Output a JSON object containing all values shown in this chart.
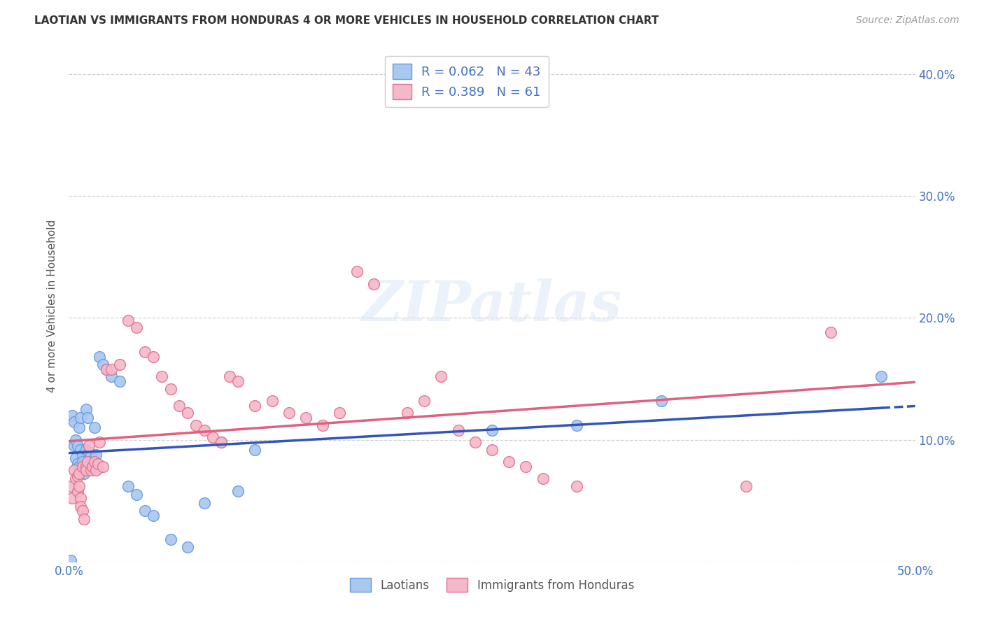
{
  "title": "LAOTIAN VS IMMIGRANTS FROM HONDURAS 4 OR MORE VEHICLES IN HOUSEHOLD CORRELATION CHART",
  "source": "Source: ZipAtlas.com",
  "ylabel": "4 or more Vehicles in Household",
  "xlim": [
    0.0,
    0.5
  ],
  "ylim": [
    0.0,
    0.42
  ],
  "xticks": [
    0.0,
    0.1,
    0.2,
    0.3,
    0.4,
    0.5
  ],
  "yticks": [
    0.0,
    0.1,
    0.2,
    0.3,
    0.4
  ],
  "xticklabels": [
    "0.0%",
    "",
    "",
    "",
    "",
    "50.0%"
  ],
  "yticklabels_right": [
    "",
    "10.0%",
    "20.0%",
    "30.0%",
    "40.0%"
  ],
  "grid_color": "#cccccc",
  "background_color": "#ffffff",
  "laotian_color": "#a8c8f0",
  "laotian_edge_color": "#6699dd",
  "honduras_color": "#f5b8c8",
  "honduras_edge_color": "#e07090",
  "laotian_R": 0.062,
  "laotian_N": 43,
  "honduras_R": 0.389,
  "honduras_N": 61,
  "axis_color": "#4472c4",
  "legend_label1": "Laotians",
  "legend_label2": "Immigrants from Honduras",
  "watermark_text": "ZIPatlas",
  "laotian_x": [
    0.001,
    0.002,
    0.003,
    0.003,
    0.004,
    0.004,
    0.005,
    0.005,
    0.006,
    0.006,
    0.007,
    0.007,
    0.008,
    0.008,
    0.009,
    0.01,
    0.01,
    0.011,
    0.012,
    0.013,
    0.014,
    0.015,
    0.016,
    0.017,
    0.018,
    0.02,
    0.022,
    0.025,
    0.03,
    0.035,
    0.04,
    0.045,
    0.05,
    0.06,
    0.07,
    0.08,
    0.09,
    0.1,
    0.11,
    0.25,
    0.3,
    0.35,
    0.48
  ],
  "laotian_y": [
    0.001,
    0.12,
    0.115,
    0.095,
    0.085,
    0.1,
    0.08,
    0.095,
    0.078,
    0.11,
    0.118,
    0.092,
    0.088,
    0.082,
    0.072,
    0.125,
    0.092,
    0.118,
    0.09,
    0.087,
    0.082,
    0.11,
    0.088,
    0.077,
    0.168,
    0.162,
    0.158,
    0.152,
    0.148,
    0.062,
    0.055,
    0.042,
    0.038,
    0.018,
    0.012,
    0.048,
    0.098,
    0.058,
    0.092,
    0.108,
    0.112,
    0.132,
    0.152
  ],
  "honduras_x": [
    0.001,
    0.002,
    0.003,
    0.004,
    0.005,
    0.005,
    0.006,
    0.006,
    0.007,
    0.007,
    0.008,
    0.008,
    0.009,
    0.01,
    0.01,
    0.011,
    0.012,
    0.013,
    0.014,
    0.015,
    0.016,
    0.017,
    0.018,
    0.02,
    0.022,
    0.025,
    0.03,
    0.035,
    0.04,
    0.045,
    0.05,
    0.055,
    0.06,
    0.065,
    0.07,
    0.075,
    0.08,
    0.085,
    0.09,
    0.095,
    0.1,
    0.11,
    0.12,
    0.13,
    0.14,
    0.15,
    0.16,
    0.17,
    0.18,
    0.2,
    0.21,
    0.22,
    0.23,
    0.24,
    0.25,
    0.26,
    0.27,
    0.28,
    0.3,
    0.4,
    0.45
  ],
  "honduras_y": [
    0.062,
    0.052,
    0.075,
    0.068,
    0.058,
    0.07,
    0.072,
    0.062,
    0.052,
    0.045,
    0.078,
    0.042,
    0.035,
    0.078,
    0.075,
    0.082,
    0.095,
    0.075,
    0.078,
    0.082,
    0.075,
    0.08,
    0.098,
    0.078,
    0.158,
    0.158,
    0.162,
    0.198,
    0.192,
    0.172,
    0.168,
    0.152,
    0.142,
    0.128,
    0.122,
    0.112,
    0.108,
    0.102,
    0.098,
    0.152,
    0.148,
    0.128,
    0.132,
    0.122,
    0.118,
    0.112,
    0.122,
    0.238,
    0.228,
    0.122,
    0.132,
    0.152,
    0.108,
    0.098,
    0.092,
    0.082,
    0.078,
    0.068,
    0.062,
    0.062,
    0.188
  ]
}
